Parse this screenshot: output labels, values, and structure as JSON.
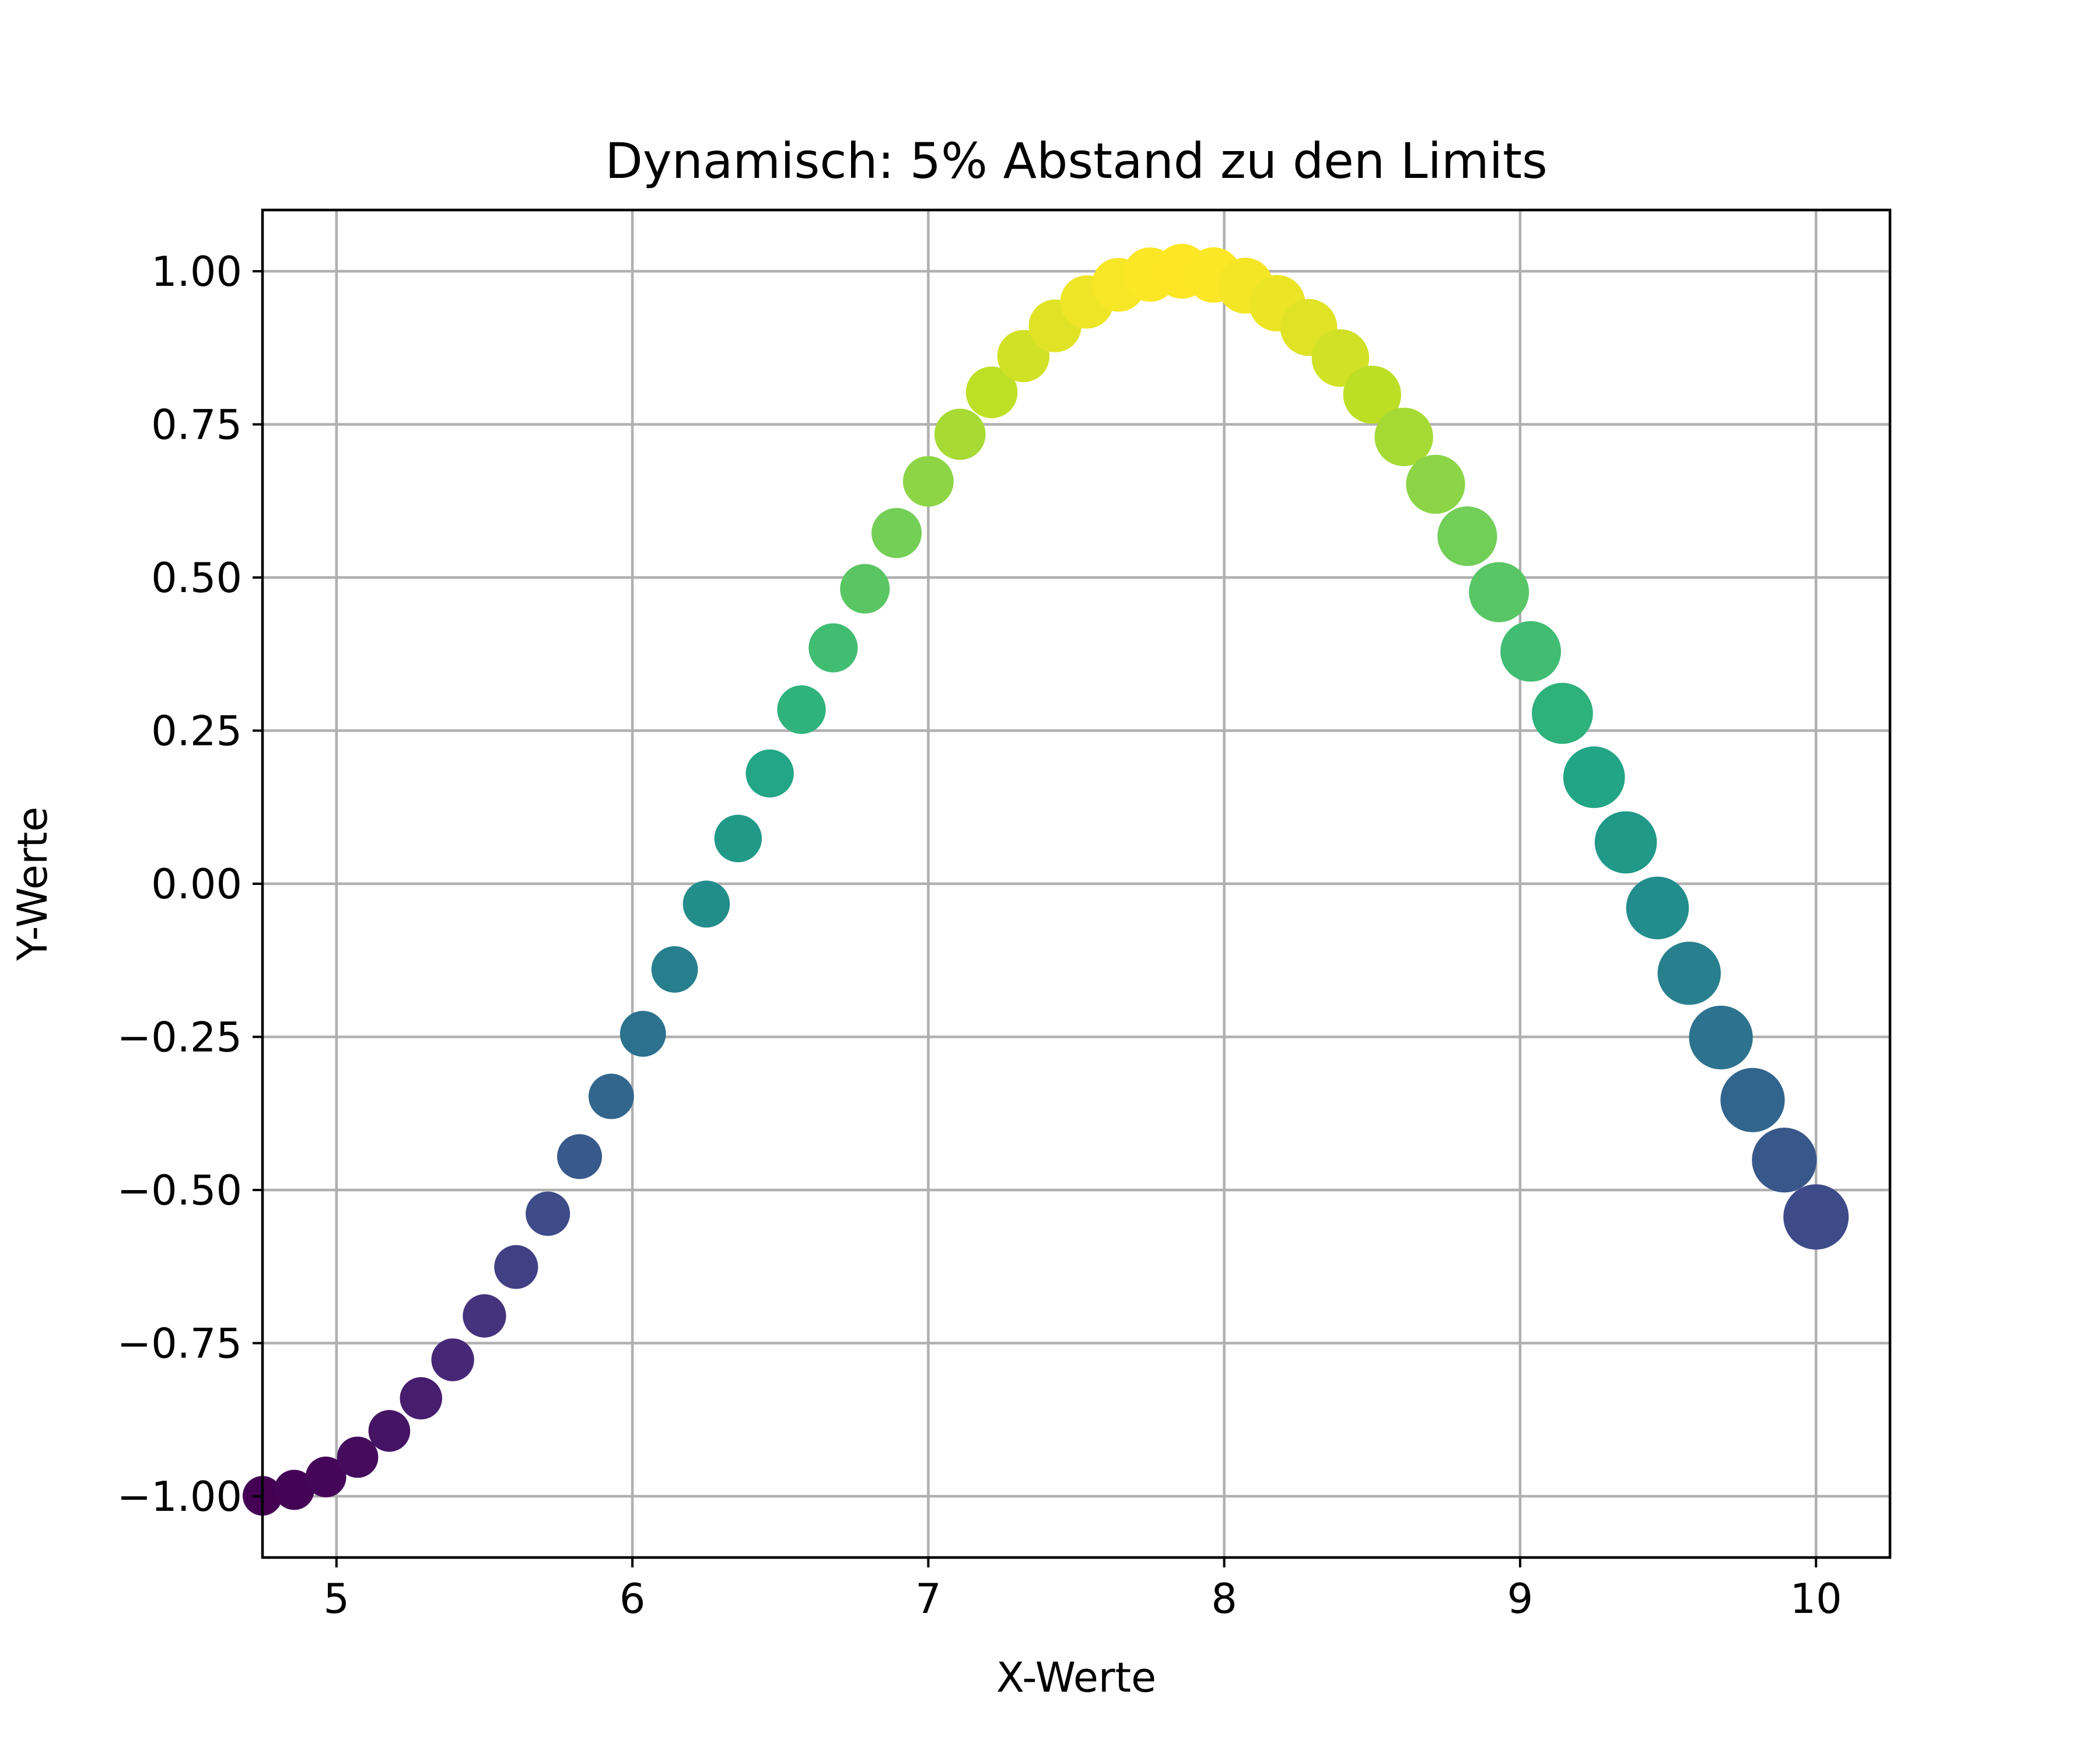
{
  "chart_data": {
    "type": "scatter",
    "title": "Dynamisch: 5% Abstand zu den Limits",
    "xlabel": "X-Werte",
    "ylabel": "Y-Werte",
    "xlim": [
      4.75,
      10.25
    ],
    "ylim": [
      -1.1,
      1.1
    ],
    "xticks": [
      5,
      6,
      7,
      8,
      9,
      10
    ],
    "xtick_labels": [
      "5",
      "6",
      "7",
      "8",
      "9",
      "10"
    ],
    "yticks": [
      1.0,
      0.75,
      0.5,
      0.25,
      0.0,
      -0.25,
      -0.5,
      -0.75,
      -1.0
    ],
    "ytick_labels": [
      "1.00",
      "0.75",
      "0.50",
      "0.25",
      "0.00",
      "−0.25",
      "−0.50",
      "−0.75",
      "−1.00"
    ],
    "grid": true,
    "legend": "none",
    "colormap": "viridis",
    "marker_size": "increases with x",
    "x_range": [
      4.75,
      10.0
    ],
    "n_points": 50,
    "y": "sin(x)",
    "color_by": "y"
  }
}
